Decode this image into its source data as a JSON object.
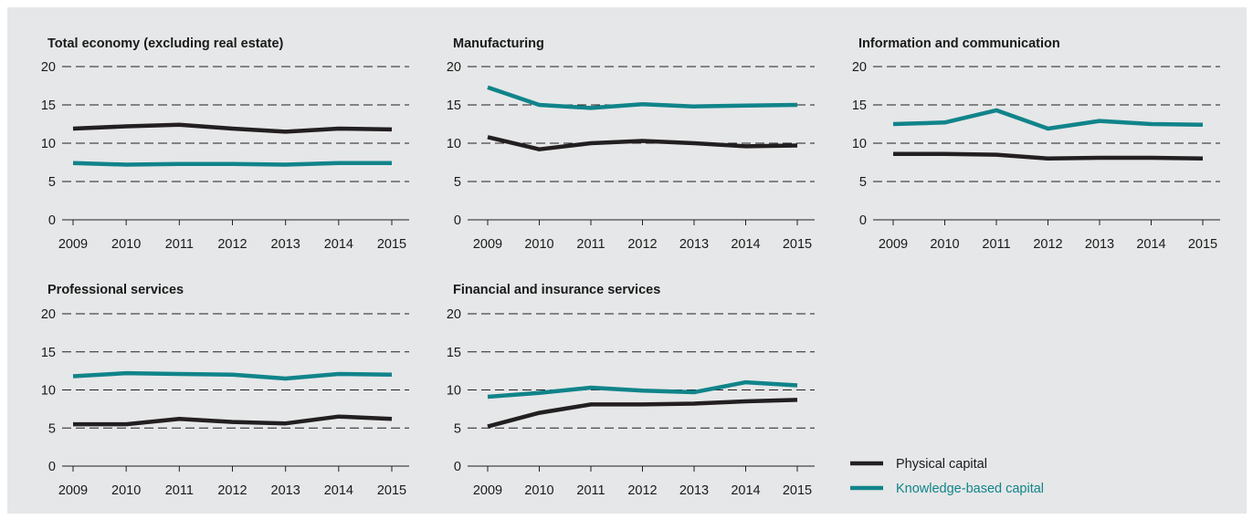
{
  "colors": {
    "background": "#e6e7e8",
    "physical": "#231f20",
    "knowledge": "#10848a",
    "grid": "#231f20"
  },
  "legend": {
    "items": [
      {
        "label": "Physical capital",
        "color": "#231f20"
      },
      {
        "label": "Knowledge-based capital",
        "color": "#10848a"
      }
    ],
    "placement": "bottom-right"
  },
  "chart_data": [
    {
      "type": "line",
      "title": "Total economy (excluding real estate)",
      "x": [
        "2009",
        "2010",
        "2011",
        "2012",
        "2013",
        "2014",
        "2015"
      ],
      "ylim": [
        0,
        20
      ],
      "yticks": [
        0,
        5,
        10,
        15,
        20
      ],
      "grid": "dashed horizontal",
      "series": [
        {
          "name": "Physical capital",
          "values": [
            11.9,
            12.2,
            12.4,
            11.9,
            11.5,
            11.9,
            11.8
          ]
        },
        {
          "name": "Knowledge-based capital",
          "values": [
            7.4,
            7.2,
            7.3,
            7.3,
            7.2,
            7.4,
            7.4
          ]
        }
      ]
    },
    {
      "type": "line",
      "title": "Manufacturing",
      "x": [
        "2009",
        "2010",
        "2011",
        "2012",
        "2013",
        "2014",
        "2015"
      ],
      "ylim": [
        0,
        20
      ],
      "yticks": [
        0,
        5,
        10,
        15,
        20
      ],
      "grid": "dashed horizontal",
      "series": [
        {
          "name": "Physical capital",
          "values": [
            10.8,
            9.2,
            10.0,
            10.3,
            10.0,
            9.6,
            9.7
          ]
        },
        {
          "name": "Knowledge-based capital",
          "values": [
            17.3,
            15.0,
            14.6,
            15.1,
            14.8,
            14.9,
            15.0
          ]
        }
      ]
    },
    {
      "type": "line",
      "title": "Information and communication",
      "x": [
        "2009",
        "2010",
        "2011",
        "2012",
        "2013",
        "2014",
        "2015"
      ],
      "ylim": [
        0,
        20
      ],
      "yticks": [
        0,
        5,
        10,
        15,
        20
      ],
      "grid": "dashed horizontal",
      "series": [
        {
          "name": "Physical capital",
          "values": [
            8.6,
            8.6,
            8.5,
            8.0,
            8.1,
            8.1,
            8.0
          ]
        },
        {
          "name": "Knowledge-based capital",
          "values": [
            12.5,
            12.7,
            14.3,
            11.9,
            12.9,
            12.5,
            12.4
          ]
        }
      ]
    },
    {
      "type": "line",
      "title": "Professional services",
      "x": [
        "2009",
        "2010",
        "2011",
        "2012",
        "2013",
        "2014",
        "2015"
      ],
      "ylim": [
        0,
        20
      ],
      "yticks": [
        0,
        5,
        10,
        15,
        20
      ],
      "grid": "dashed horizontal",
      "series": [
        {
          "name": "Physical capital",
          "values": [
            5.5,
            5.5,
            6.2,
            5.8,
            5.6,
            6.5,
            6.2
          ]
        },
        {
          "name": "Knowledge-based capital",
          "values": [
            11.8,
            12.2,
            12.1,
            12.0,
            11.5,
            12.1,
            12.0
          ]
        }
      ]
    },
    {
      "type": "line",
      "title": "Financial and insurance services",
      "x": [
        "2009",
        "2010",
        "2011",
        "2012",
        "2013",
        "2014",
        "2015"
      ],
      "ylim": [
        0,
        20
      ],
      "yticks": [
        0,
        5,
        10,
        15,
        20
      ],
      "grid": "dashed horizontal",
      "series": [
        {
          "name": "Physical capital",
          "values": [
            5.2,
            7.0,
            8.1,
            8.1,
            8.2,
            8.5,
            8.7
          ]
        },
        {
          "name": "Knowledge-based capital",
          "values": [
            9.1,
            9.6,
            10.3,
            9.9,
            9.7,
            11.0,
            10.6
          ]
        }
      ]
    }
  ]
}
